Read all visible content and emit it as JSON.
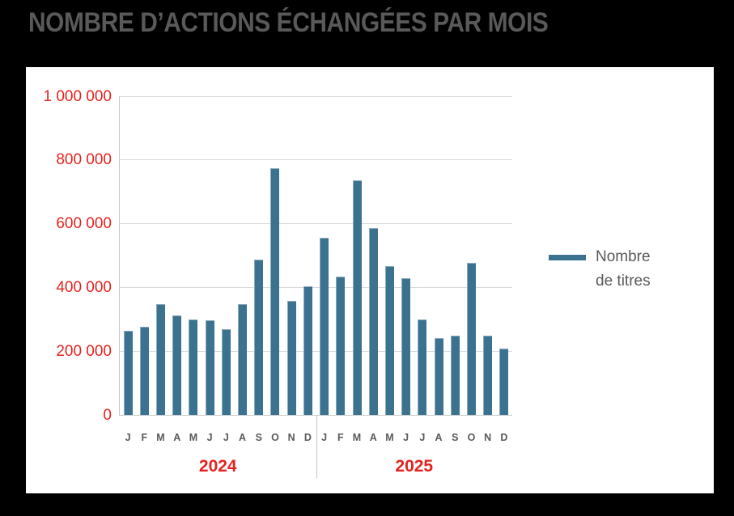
{
  "page": {
    "title": "NOMBRE D’ACTIONS ÉCHANGÉES PAR MOIS",
    "background_color": "#000000",
    "panel_color": "#ffffff",
    "title_color": "#595959"
  },
  "legend": {
    "series_label": "Nombre de titres",
    "swatch_color": "#3b7290",
    "text_color": "#595959"
  },
  "chart_data": {
    "type": "bar",
    "title": "NOMBRE D’ACTIONS ÉCHANGÉES PAR MOIS",
    "xlabel": "",
    "ylabel": "",
    "ylim": [
      0,
      1000000
    ],
    "grid": true,
    "legend_position": "right",
    "bar_color": "#3b7290",
    "axis_tick_color": "#e5231e",
    "year_label_color": "#e5231e",
    "month_label_color": "#595959",
    "gridline_color": "#d9d9d9",
    "yticks": [
      {
        "value": 1000000,
        "label": "1 000 000"
      },
      {
        "value": 800000,
        "label": "800 000"
      },
      {
        "value": 600000,
        "label": "600 000"
      },
      {
        "value": 400000,
        "label": "400 000"
      },
      {
        "value": 200000,
        "label": "200 000"
      },
      {
        "value": 0,
        "label": "0"
      }
    ],
    "categories": [
      "J",
      "F",
      "M",
      "A",
      "M",
      "J",
      "J",
      "A",
      "S",
      "O",
      "N",
      "D",
      "J",
      "F",
      "M",
      "A",
      "M",
      "J",
      "J",
      "A",
      "S",
      "O",
      "N",
      "D"
    ],
    "year_groups": [
      {
        "label": "2024",
        "months": 12
      },
      {
        "label": "2025",
        "months": 12
      }
    ],
    "series": [
      {
        "name": "Nombre de titres",
        "values": [
          264000,
          276000,
          349000,
          311000,
          300000,
          297000,
          268000,
          349000,
          487000,
          773000,
          359000,
          403000,
          556000,
          433000,
          735000,
          586000,
          466000,
          430000,
          300000,
          242000,
          248000,
          477000,
          250000,
          208000
        ]
      }
    ]
  }
}
